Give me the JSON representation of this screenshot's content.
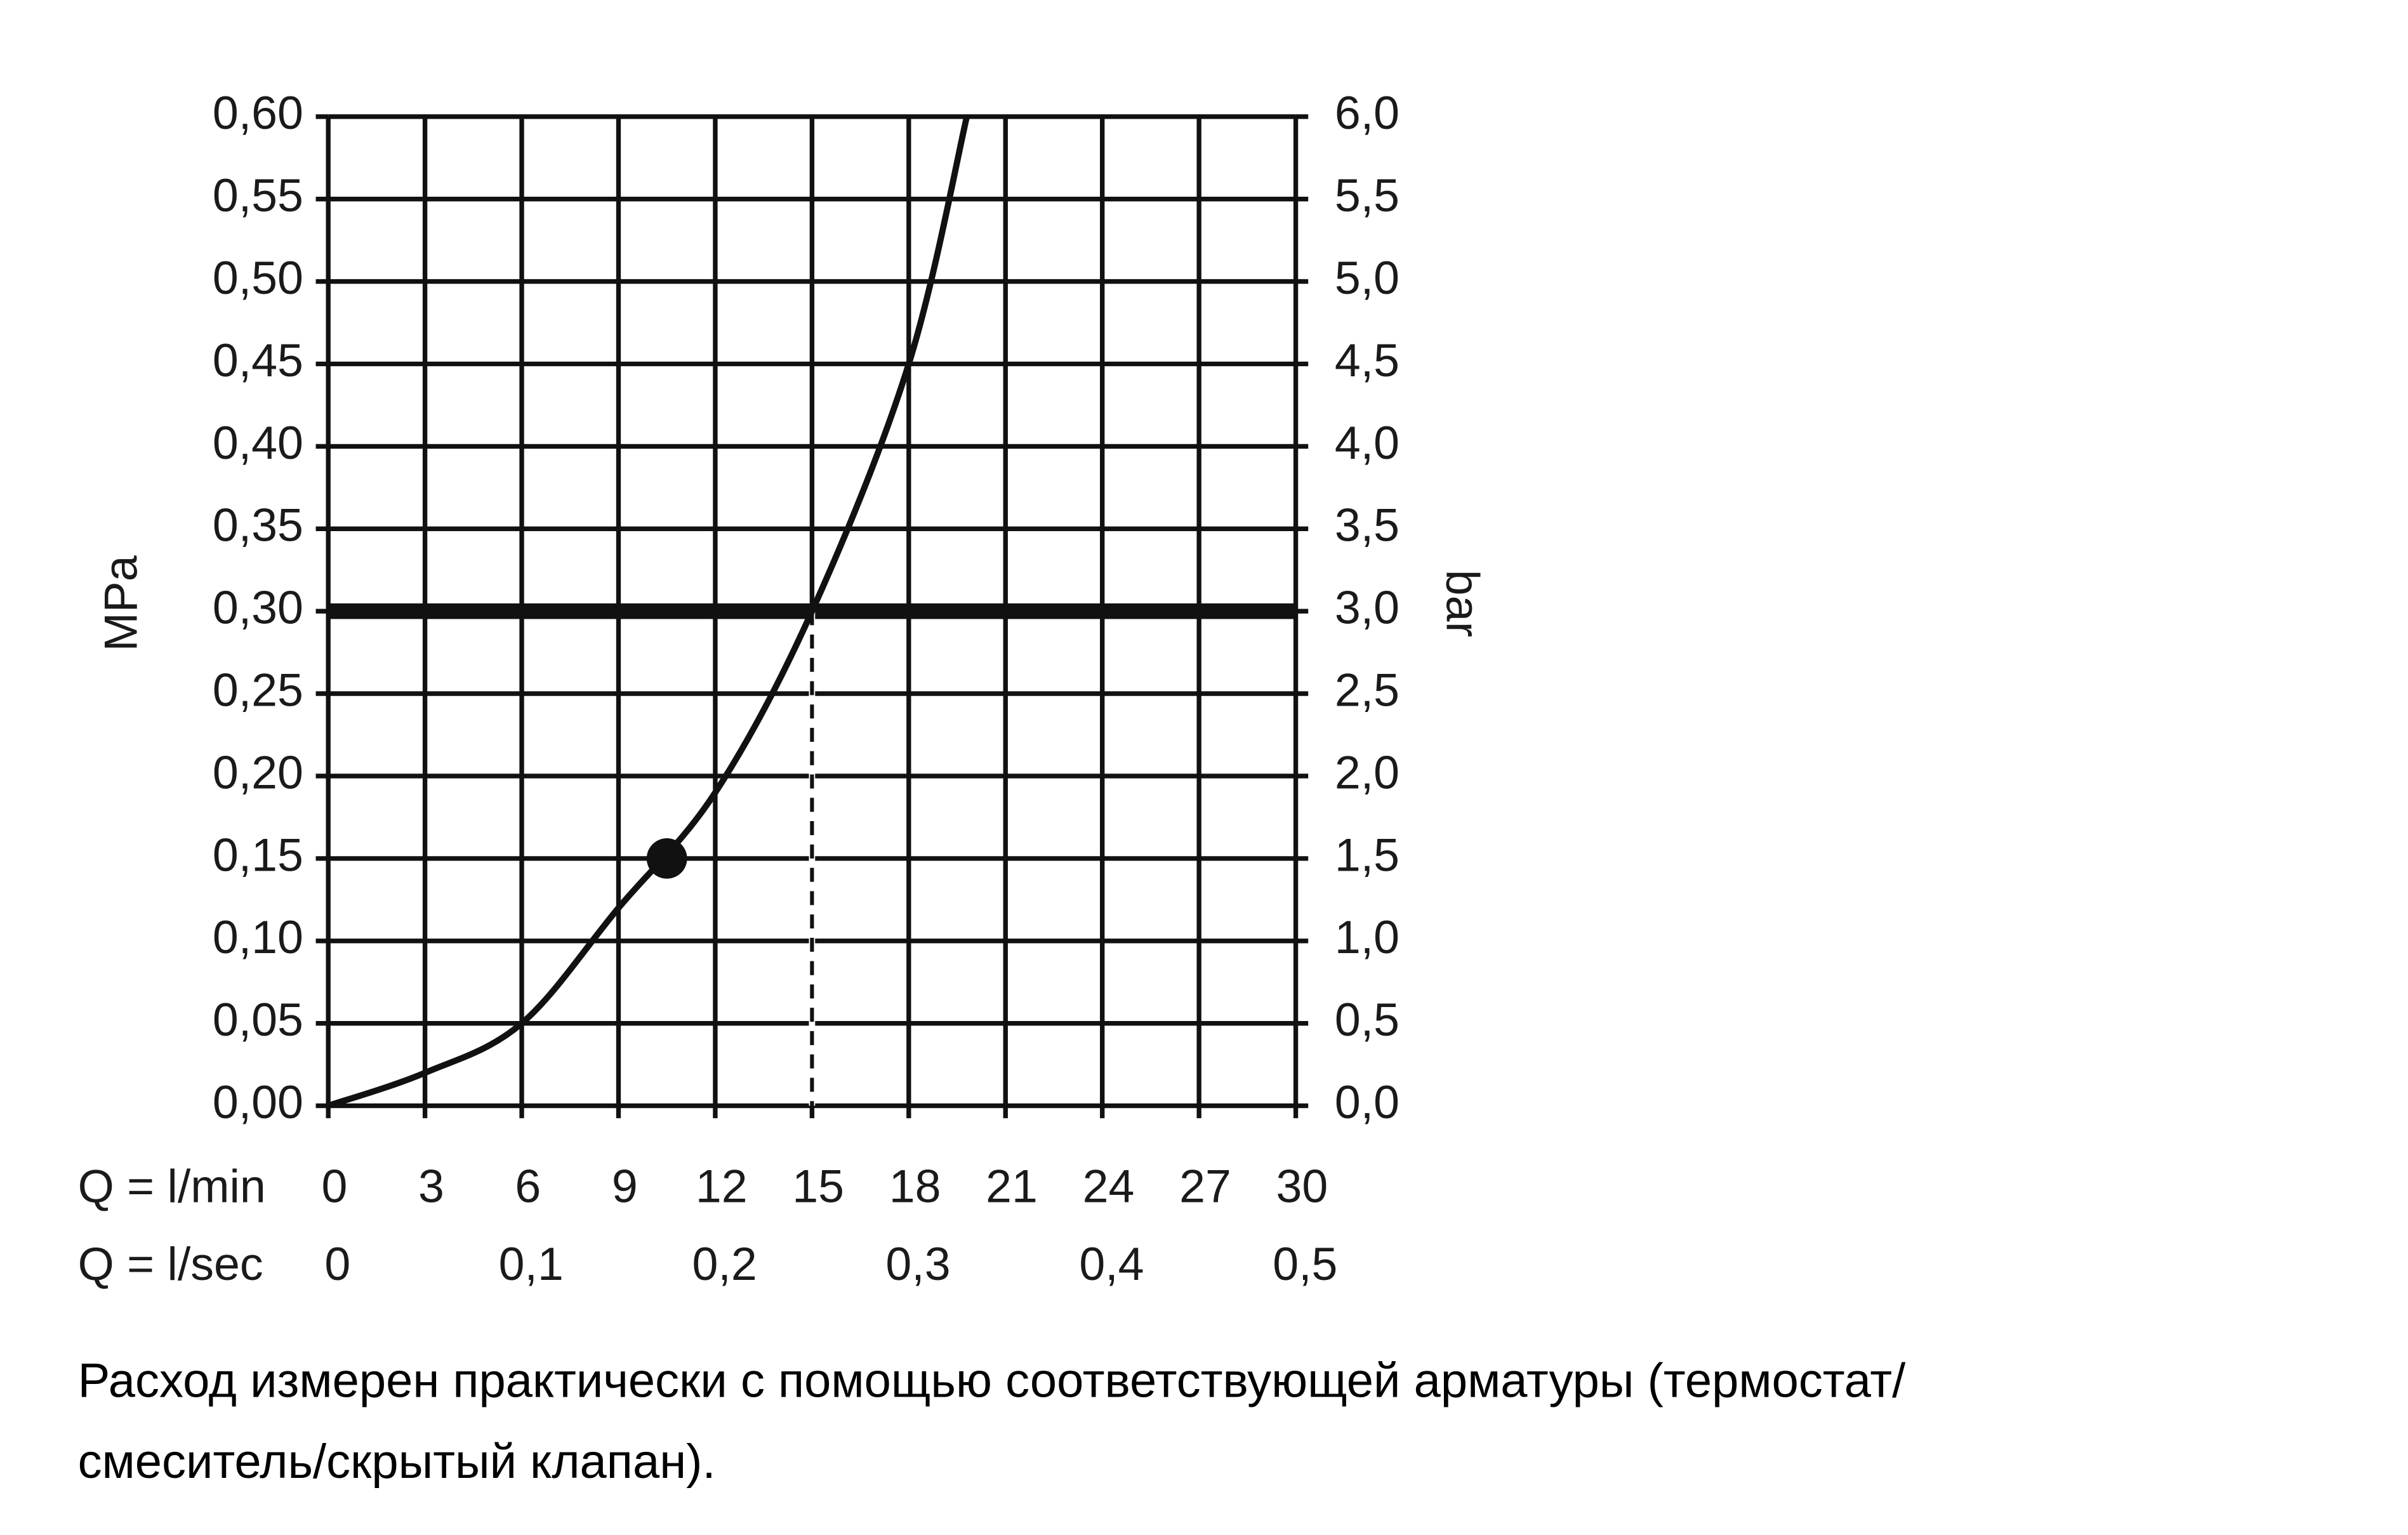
{
  "chart_data": {
    "type": "line",
    "y_label": "MPa",
    "y2_label": "bar",
    "x_label": "Q = l/min",
    "x2_label": "Q = l/sec",
    "xlim": [
      0,
      30
    ],
    "xticks": [
      0,
      3,
      6,
      9,
      12,
      15,
      18,
      21,
      24,
      27,
      30
    ],
    "x2lim": [
      0,
      0.5
    ],
    "x2ticks": [
      0,
      {
        "value": 0.1,
        "label": "0,1"
      },
      {
        "value": 0.2,
        "label": "0,2"
      },
      {
        "value": 0.3,
        "label": "0,3"
      },
      {
        "value": 0.4,
        "label": "0,4"
      },
      {
        "value": 0.5,
        "label": "0,5"
      }
    ],
    "ylim": [
      0,
      0.6
    ],
    "yticks": [
      {
        "value": 0,
        "label": "0,00"
      },
      {
        "value": 0.05,
        "label": "0,05"
      },
      {
        "value": 0.1,
        "label": "0,10"
      },
      {
        "value": 0.15,
        "label": "0,15"
      },
      {
        "value": 0.2,
        "label": "0,20"
      },
      {
        "value": 0.25,
        "label": "0,25"
      },
      {
        "value": 0.3,
        "label": "0,30"
      },
      {
        "value": 0.35,
        "label": "0,35"
      },
      {
        "value": 0.4,
        "label": "0,40"
      },
      {
        "value": 0.45,
        "label": "0,45"
      },
      {
        "value": 0.5,
        "label": "0,50"
      },
      {
        "value": 0.55,
        "label": "0,55"
      },
      {
        "value": 0.6,
        "label": "0,60"
      }
    ],
    "y2lim": [
      0,
      6
    ],
    "y2ticks": [
      {
        "value": 0,
        "label": "0,0"
      },
      {
        "value": 0.5,
        "label": "0,5"
      },
      {
        "value": 1,
        "label": "1,0"
      },
      {
        "value": 1.5,
        "label": "1,5"
      },
      {
        "value": 2,
        "label": "2,0"
      },
      {
        "value": 2.5,
        "label": "2,5"
      },
      {
        "value": 3,
        "label": "3,0"
      },
      {
        "value": 3.5,
        "label": "3,5"
      },
      {
        "value": 4,
        "label": "4,0"
      },
      {
        "value": 4.5,
        "label": "4,5"
      },
      {
        "value": 5,
        "label": "5,0"
      },
      {
        "value": 5.5,
        "label": "5,5"
      },
      {
        "value": 6,
        "label": "6,0"
      }
    ],
    "grid": true,
    "series": [
      {
        "color": "#111111",
        "x": [
          0,
          3,
          6,
          9,
          12,
          15,
          18,
          19.8
        ],
        "values": [
          0,
          0.02,
          0.05,
          0.12,
          0.19,
          0.3,
          0.45,
          0.6
        ]
      }
    ],
    "marker": {
      "x": 10.5,
      "y": 0.15
    },
    "reference_y": 0.3,
    "reference_x": 15,
    "note": [
      "Расход измерен практически с помощью соответствующей арматуры (термостат/",
      "смеситель/скрытый клапан)."
    ]
  }
}
